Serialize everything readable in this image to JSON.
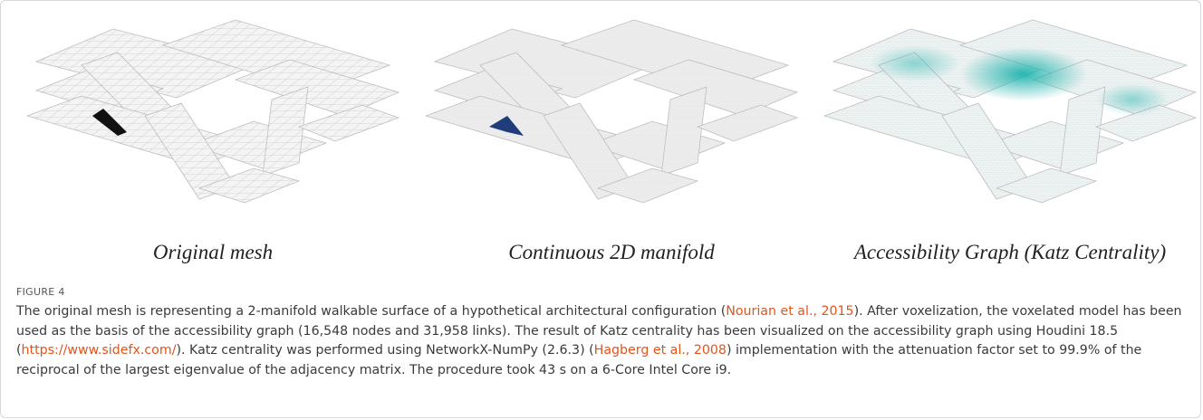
{
  "figure": {
    "panels": [
      "Original mesh",
      "Continuous 2D manifold",
      "Accessibility Graph (Katz Centrality)"
    ],
    "label": "FIGURE 4",
    "caption": [
      {
        "text": "The original mesh is representing a 2-manifold walkable surface of a hypothetical architectural configuration ("
      },
      {
        "text": "Nourian et al., 2015",
        "link": true
      },
      {
        "text": "). After voxelization, the voxelated model has been used as the basis of the accessibility graph (16,548 nodes and 31,958 links). The result of Katz centrality has been visualized on the accessibility graph using Houdini 18.5 ("
      },
      {
        "text": "https://www.sidefx.com/",
        "link": true
      },
      {
        "text": "). Katz centrality was performed using NetworkX-NumPy (2.6.3) ("
      },
      {
        "text": "Hagberg et al., 2008",
        "link": true
      },
      {
        "text": ") implementation with the attenuation factor set to 99.9% of the reciprocal of the largest eigenvalue of the adjacency matrix. The procedure took 43 s on a 6-Core Intel Core i9."
      }
    ]
  }
}
